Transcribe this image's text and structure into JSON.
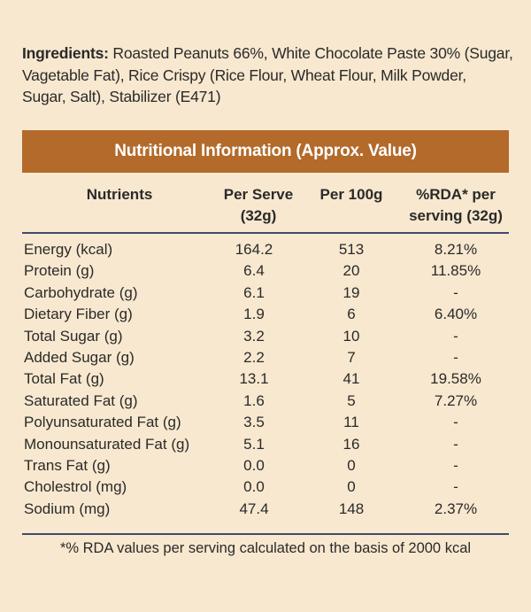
{
  "ingredients": {
    "label": "Ingredients:",
    "text": " Roasted Peanuts 66%, White Chocolate Paste 30% (Sugar, Vagetable Fat), Rice Crispy (Rice Flour, Wheat Flour, Milk Powder, Sugar, Salt), Stabilizer (E471)"
  },
  "table": {
    "title": "Nutritional Information (Approx. Value)",
    "headers": {
      "nutrients": "Nutrients",
      "per_serve_l1": "Per Serve",
      "per_serve_l2": "(32g)",
      "per_100g": "Per 100g",
      "rda_l1": "%RDA* per",
      "rda_l2": "serving (32g)"
    },
    "rows": [
      {
        "name": "Energy (kcal)",
        "serve": "164.2",
        "per100": "513",
        "rda": "8.21%"
      },
      {
        "name": "Protein (g)",
        "serve": "6.4",
        "per100": "20",
        "rda": "11.85%"
      },
      {
        "name": "Carbohydrate (g)",
        "serve": "6.1",
        "per100": "19",
        "rda": "-"
      },
      {
        "name": "Dietary Fiber (g)",
        "serve": "1.9",
        "per100": "6",
        "rda": "6.40%"
      },
      {
        "name": "Total Sugar (g)",
        "serve": "3.2",
        "per100": "10",
        "rda": "-"
      },
      {
        "name": "Added Sugar (g)",
        "serve": "2.2",
        "per100": "7",
        "rda": "-"
      },
      {
        "name": "Total Fat (g)",
        "serve": "13.1",
        "per100": "41",
        "rda": "19.58%"
      },
      {
        "name": "Saturated Fat (g)",
        "serve": "1.6",
        "per100": "5",
        "rda": "7.27%"
      },
      {
        "name": "Polyunsaturated Fat (g)",
        "serve": "3.5",
        "per100": "11",
        "rda": "-"
      },
      {
        "name": "Monounsaturated Fat (g)",
        "serve": "5.1",
        "per100": "16",
        "rda": "-"
      },
      {
        "name": "Trans Fat (g)",
        "serve": "0.0",
        "per100": "0",
        "rda": "-"
      },
      {
        "name": "Cholestrol (mg)",
        "serve": "0.0",
        "per100": "0",
        "rda": "-"
      },
      {
        "name": "Sodium (mg)",
        "serve": "47.4",
        "per100": "148",
        "rda": "2.37%"
      }
    ],
    "footnote": "*% RDA values per serving calculated on the basis of 2000 kcal"
  },
  "colors": {
    "background": "#f8e8cf",
    "header_bar": "#b36a2a",
    "rule": "#3f4a6b"
  }
}
